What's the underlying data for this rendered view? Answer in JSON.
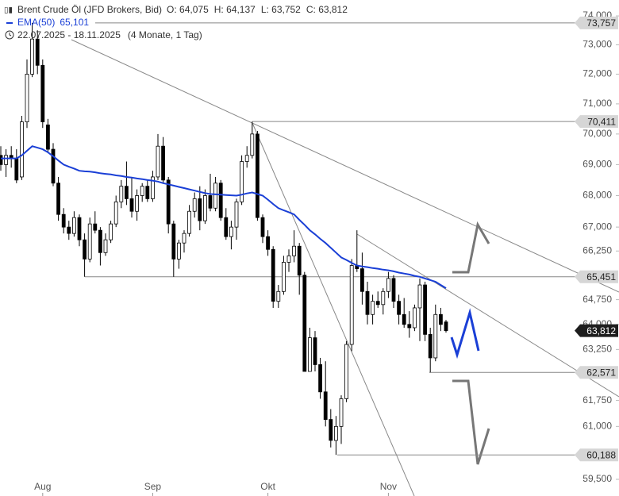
{
  "chart_data": {
    "type": "candlestick",
    "title": "Brent Crude Öl (JFD Brokers, Bid)",
    "ohlc_labels": [
      "O: 64,075",
      "H: 64,137",
      "L: 63,752",
      "C: 63,812"
    ],
    "date_range": "22.07.2025 - 18.11.2025",
    "period": "(4 Monate, 1 Tag)",
    "categories": [
      null,
      null,
      null,
      null,
      null,
      null,
      null,
      null,
      "Aug",
      null,
      null,
      null,
      null,
      null,
      null,
      null,
      null,
      null,
      null,
      null,
      null,
      null,
      null,
      null,
      null,
      null,
      null,
      null,
      null,
      "Sep",
      null,
      null,
      null,
      null,
      null,
      null,
      null,
      null,
      null,
      null,
      null,
      null,
      null,
      null,
      null,
      null,
      null,
      null,
      null,
      null,
      null,
      "Okt",
      null,
      null,
      null,
      null,
      null,
      null,
      null,
      null,
      null,
      null,
      null,
      null,
      null,
      null,
      null,
      null,
      null,
      null,
      null,
      null,
      null,
      null,
      "Nov",
      null,
      null,
      null,
      null,
      null,
      null,
      null,
      null,
      null,
      null,
      null
    ],
    "open": [
      69.3,
      69.0,
      69.3,
      69.2,
      68.6,
      70.4,
      72.0,
      73.2,
      72.3,
      70.3,
      69.5,
      68.4,
      67.4,
      67.0,
      66.8,
      67.3,
      66.6,
      66.0,
      67.1,
      66.9,
      66.2,
      66.6,
      67.1,
      67.8,
      68.3,
      67.9,
      67.5,
      68.0,
      68.3,
      67.9,
      68.6,
      69.6,
      68.5,
      67.1,
      66.0,
      66.5,
      66.8,
      67.5,
      67.9,
      67.2,
      68.0,
      67.6,
      68.4,
      67.3,
      66.7,
      67.0,
      67.8,
      69.1,
      69.3,
      70.0,
      67.3,
      66.7,
      66.3,
      64.7,
      65.0,
      65.9,
      66.1,
      66.4,
      65.5,
      62.6,
      63.6,
      62.8,
      62.0,
      61.2,
      60.6,
      61.0,
      61.8,
      63.4,
      65.8,
      65.7,
      65.0,
      64.3,
      64.7,
      64.6,
      65.0,
      65.4,
      64.7,
      64.3,
      64.0,
      63.9,
      64.5,
      65.2,
      63.7,
      63.0,
      64.3,
      64.075
    ],
    "high": [
      69.6,
      69.5,
      69.6,
      69.5,
      70.6,
      72.5,
      73.757,
      73.5,
      72.5,
      70.5,
      69.7,
      68.6,
      67.6,
      67.2,
      67.5,
      67.4,
      66.8,
      67.3,
      67.5,
      67.0,
      66.8,
      67.2,
      68.0,
      68.5,
      69.1,
      68.6,
      68.2,
      68.4,
      68.5,
      68.8,
      70.0,
      69.9,
      68.6,
      67.2,
      66.6,
      66.9,
      67.7,
      68.1,
      68.3,
      68.2,
      68.7,
      68.6,
      68.5,
      67.6,
      67.2,
      67.9,
      69.3,
      69.6,
      70.411,
      70.1,
      67.4,
      66.9,
      66.4,
      65.2,
      66.1,
      66.3,
      66.9,
      66.5,
      65.6,
      63.9,
      63.8,
      63.0,
      62.9,
      61.5,
      61.3,
      61.9,
      63.5,
      66.0,
      66.9,
      66.2,
      65.3,
      64.9,
      65.0,
      65.1,
      65.6,
      65.5,
      64.9,
      64.8,
      64.4,
      64.6,
      65.4,
      65.3,
      63.9,
      64.6,
      64.5,
      64.137
    ],
    "low": [
      68.8,
      68.6,
      68.9,
      68.4,
      68.5,
      70.2,
      71.9,
      72.0,
      70.2,
      69.4,
      68.3,
      67.2,
      66.8,
      66.6,
      66.7,
      66.4,
      65.451,
      65.9,
      66.8,
      65.8,
      66.1,
      66.5,
      67.0,
      67.6,
      67.7,
      67.3,
      67.2,
      67.8,
      67.8,
      67.8,
      68.5,
      68.4,
      66.8,
      65.451,
      65.7,
      66.2,
      66.7,
      67.3,
      66.9,
      67.1,
      67.5,
      67.5,
      67.2,
      66.6,
      66.3,
      66.6,
      67.7,
      68.9,
      69.2,
      67.2,
      66.5,
      66.1,
      64.5,
      64.5,
      64.9,
      65.6,
      65.9,
      64.9,
      62.6,
      62.6,
      62.6,
      61.8,
      61.0,
      60.4,
      60.188,
      60.5,
      61.7,
      63.2,
      65.6,
      64.6,
      64.0,
      64.0,
      64.5,
      64.3,
      64.8,
      64.5,
      64.0,
      63.9,
      63.6,
      63.8,
      63.5,
      63.5,
      62.571,
      62.9,
      63.8,
      63.752
    ],
    "close": [
      69.0,
      69.3,
      69.2,
      68.5,
      70.4,
      72.0,
      73.2,
      72.3,
      70.4,
      69.5,
      68.4,
      67.4,
      67.0,
      66.8,
      67.3,
      66.6,
      66.0,
      67.1,
      66.9,
      66.2,
      66.6,
      67.1,
      67.8,
      68.3,
      67.9,
      67.5,
      68.0,
      68.3,
      67.9,
      68.6,
      69.6,
      68.5,
      67.1,
      66.0,
      66.5,
      66.8,
      67.5,
      67.9,
      67.2,
      68.0,
      67.6,
      68.4,
      67.3,
      66.7,
      67.0,
      67.8,
      69.1,
      69.3,
      70.0,
      67.3,
      66.7,
      66.3,
      64.7,
      65.0,
      65.9,
      66.1,
      66.4,
      65.5,
      62.6,
      63.6,
      62.8,
      62.0,
      61.2,
      60.6,
      61.0,
      61.8,
      63.4,
      65.8,
      65.7,
      65.0,
      64.3,
      64.7,
      64.6,
      65.0,
      65.4,
      64.7,
      64.3,
      64.0,
      63.9,
      64.5,
      65.2,
      63.7,
      63.0,
      64.3,
      64.0,
      63.812
    ],
    "color_up": "#ffffff",
    "color_down": "#000000",
    "ema": {
      "name": "EMA(50)",
      "color": "#1a3fd6",
      "value_label": "65,101",
      "values": [
        69.2,
        69.2,
        69.2,
        69.2,
        69.3,
        69.45,
        69.6,
        69.55,
        69.5,
        69.4,
        69.27,
        69.13,
        69.0,
        68.93,
        68.87,
        68.8,
        68.78,
        68.77,
        68.75,
        68.72,
        68.7,
        68.68,
        68.65,
        68.63,
        68.6,
        68.58,
        68.55,
        68.53,
        68.5,
        68.48,
        68.45,
        68.4,
        68.36,
        68.32,
        68.28,
        68.24,
        68.2,
        68.16,
        68.12,
        68.08,
        68.05,
        68.04,
        68.03,
        68.02,
        68.01,
        68.0,
        68.03,
        68.07,
        68.1,
        68.05,
        68.0,
        67.87,
        67.73,
        67.6,
        67.53,
        67.47,
        67.4,
        67.23,
        67.07,
        66.9,
        66.77,
        66.63,
        66.5,
        66.35,
        66.2,
        66.05,
        65.97,
        65.88,
        65.8,
        65.77,
        65.75,
        65.72,
        65.7,
        65.67,
        65.65,
        65.62,
        65.58,
        65.55,
        65.52,
        65.48,
        65.45,
        65.4,
        65.35,
        65.3,
        65.2,
        65.101
      ]
    },
    "log_scale": true,
    "ylim": [
      59.035,
      74.557
    ],
    "yticks": [
      {
        "value": 74,
        "label": "74,000"
      },
      {
        "value": 73,
        "label": "73,000"
      },
      {
        "value": 72,
        "label": "72,000"
      },
      {
        "value": 71,
        "label": "71,000"
      },
      {
        "value": 70,
        "label": "70,000"
      },
      {
        "value": 69,
        "label": "69,000"
      },
      {
        "value": 68,
        "label": "68,000"
      },
      {
        "value": 67,
        "label": "67,000"
      },
      {
        "value": 66.25,
        "label": "66,250"
      },
      {
        "value": 64.75,
        "label": "64,750"
      },
      {
        "value": 64,
        "label": "64,000"
      },
      {
        "value": 63.25,
        "label": "63,250"
      },
      {
        "value": 61.75,
        "label": "61,750"
      },
      {
        "value": 61,
        "label": "61,000"
      },
      {
        "value": 59.5,
        "label": "59,500"
      }
    ],
    "levels": [
      {
        "value": 73.757,
        "label": "73,757"
      },
      {
        "value": 70.411,
        "label": "70,411"
      },
      {
        "value": 65.451,
        "label": "65,451"
      },
      {
        "value": 62.571,
        "label": "62,571"
      },
      {
        "value": 60.188,
        "label": "60,188"
      }
    ],
    "last": {
      "value": 63.812,
      "label": "63,812"
    }
  }
}
